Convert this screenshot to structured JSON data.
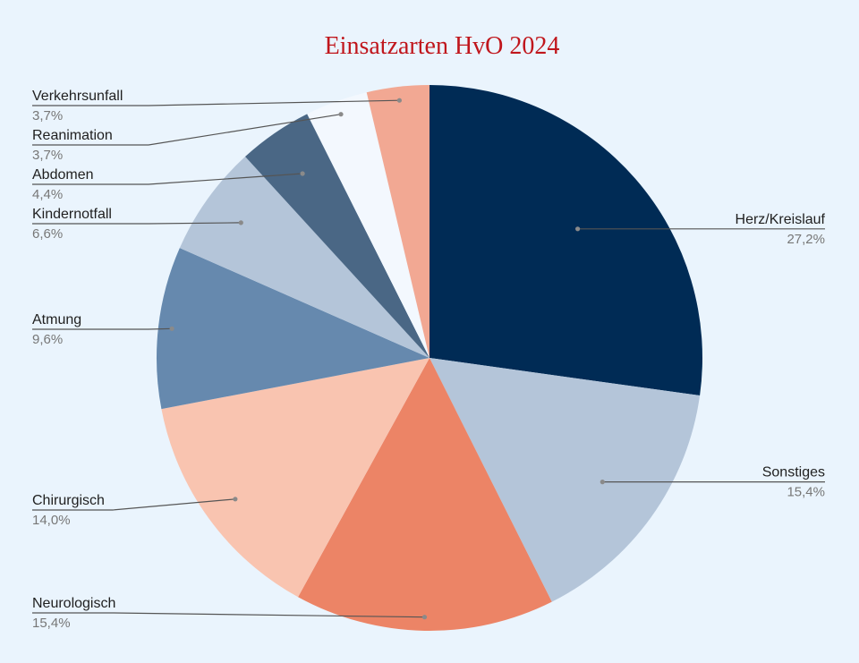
{
  "chart_data": {
    "type": "pie",
    "title": "Einsatzarten HvO 2024",
    "slices": [
      {
        "label": "Herz/Kreislauf",
        "value": 27.2,
        "value_label": "27,2%",
        "color": "#002b55"
      },
      {
        "label": "Sonstiges",
        "value": 15.4,
        "value_label": "15,4%",
        "color": "#b4c5d9"
      },
      {
        "label": "Neurologisch",
        "value": 15.4,
        "value_label": "15,4%",
        "color": "#ec8466"
      },
      {
        "label": "Chirurgisch",
        "value": 14.0,
        "value_label": "14,0%",
        "color": "#f9c4b0"
      },
      {
        "label": "Atmung",
        "value": 9.6,
        "value_label": "9,6%",
        "color": "#6689ae"
      },
      {
        "label": "Kindernotfall",
        "value": 6.6,
        "value_label": "6,6%",
        "color": "#b4c5d9"
      },
      {
        "label": "Abdomen",
        "value": 4.4,
        "value_label": "4,4%",
        "color": "#4a6785"
      },
      {
        "label": "Reanimation",
        "value": 3.7,
        "value_label": "3,7%",
        "color": "#f3f8fe"
      },
      {
        "label": "Verkehrsunfall",
        "value": 3.7,
        "value_label": "3,7%",
        "color": "#f2a893"
      }
    ],
    "start_angle_deg": 0,
    "direction": "clockwise",
    "legend": "none"
  }
}
